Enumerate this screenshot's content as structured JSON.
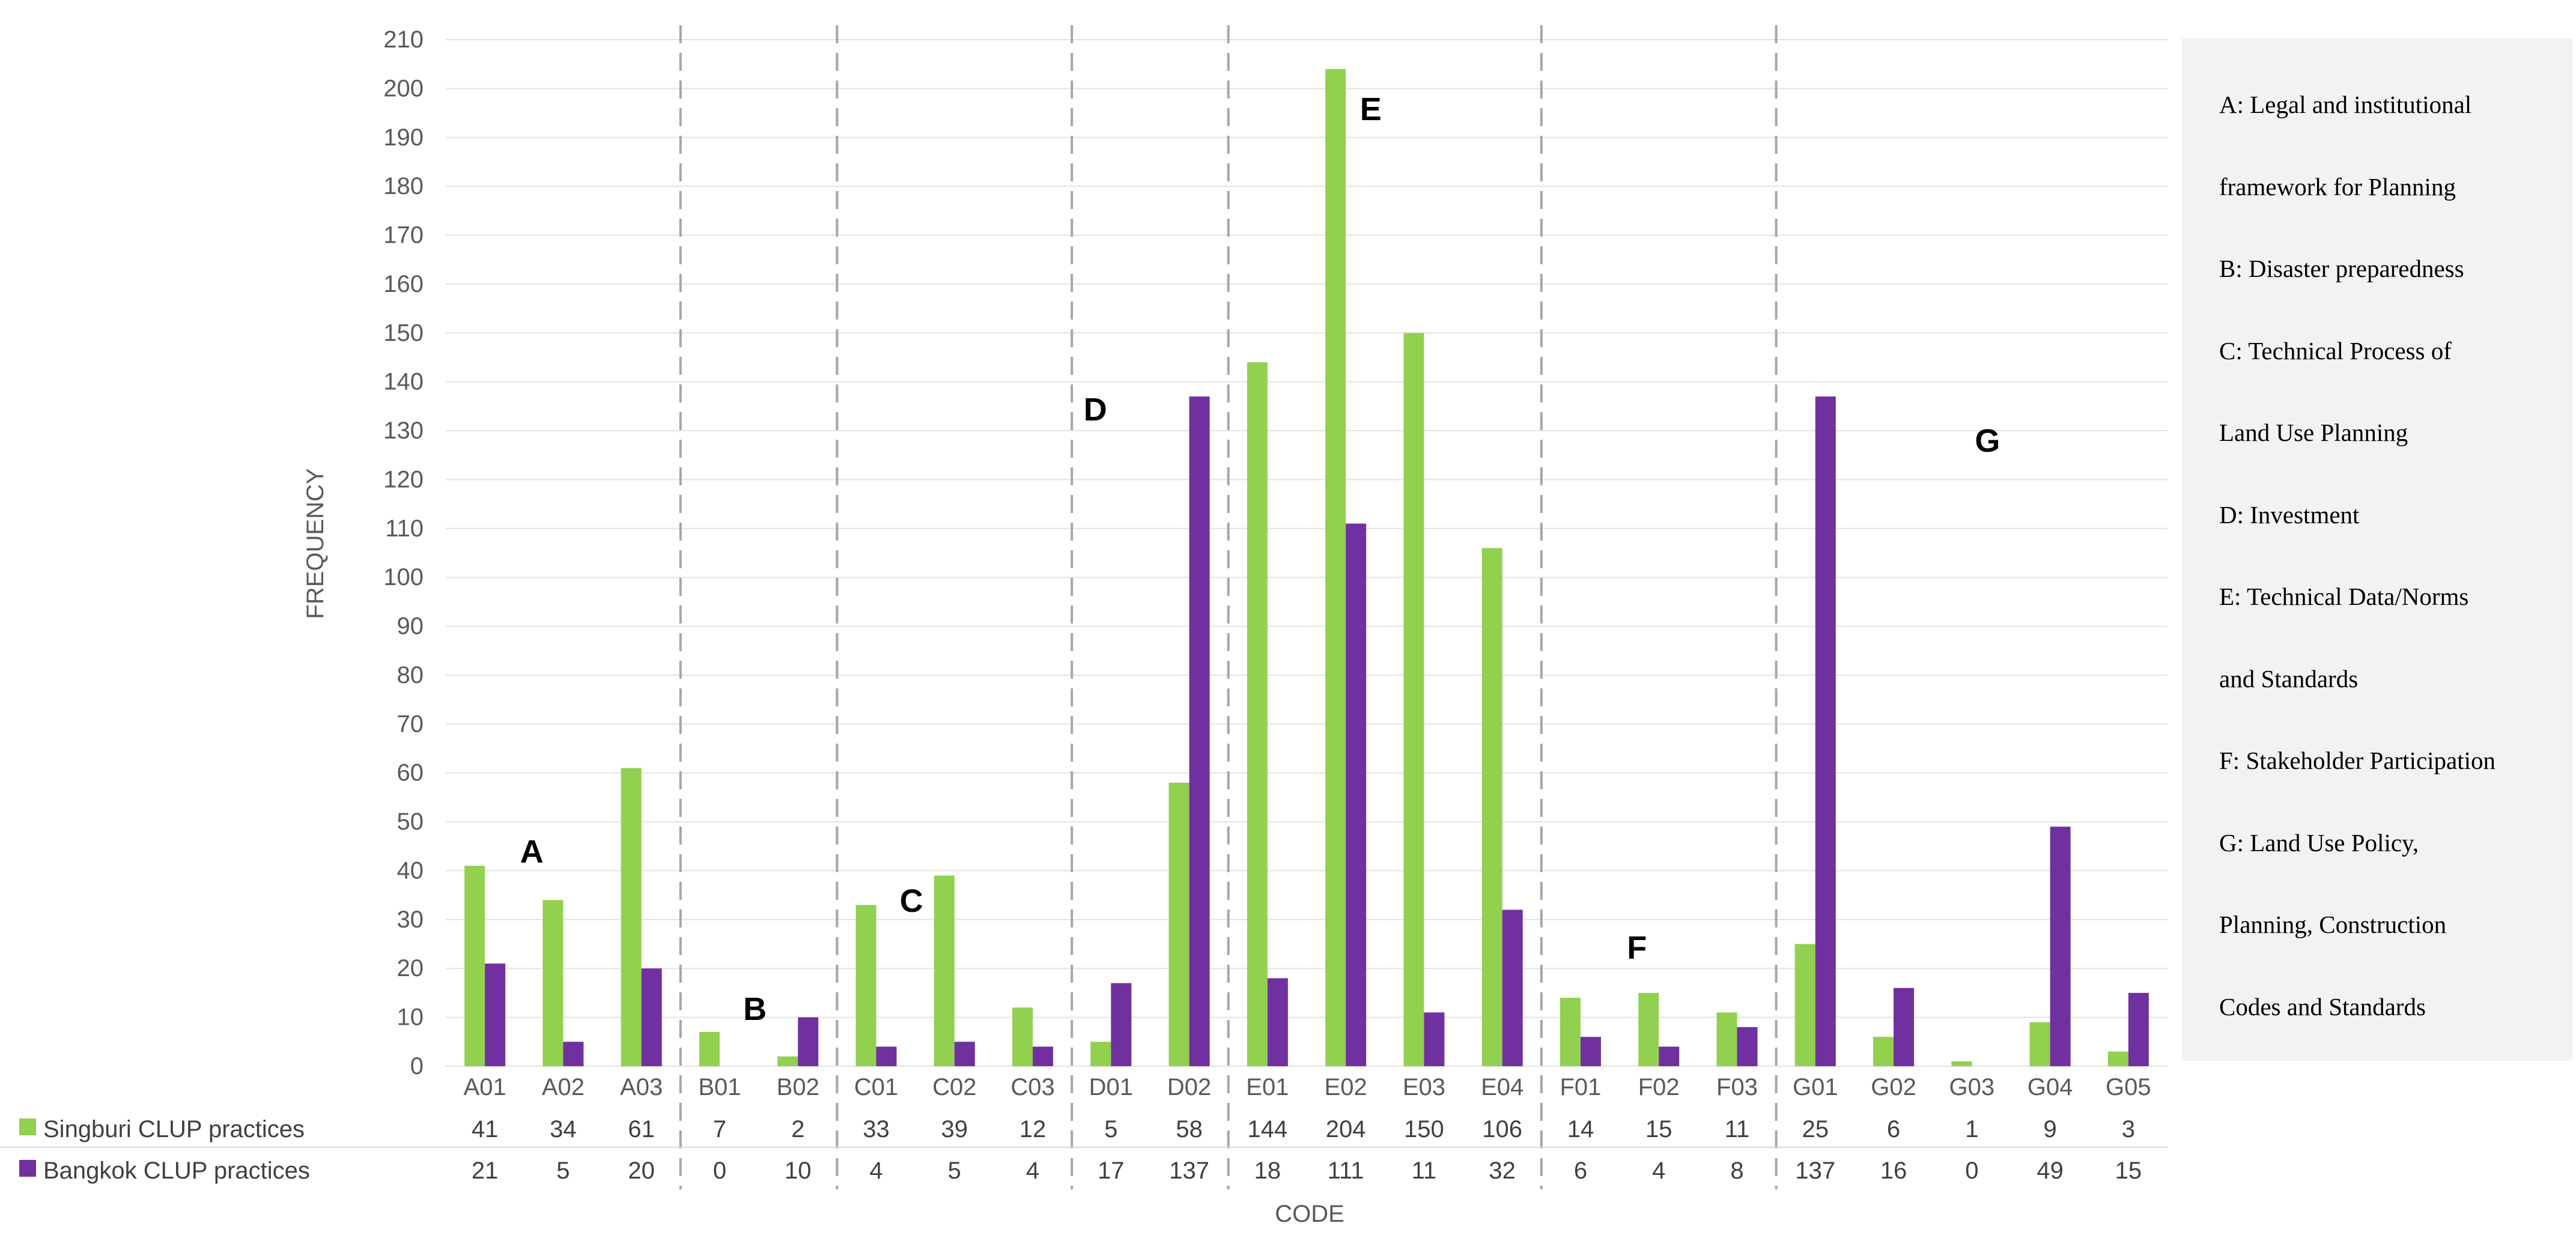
{
  "chart_data": {
    "type": "bar",
    "xlabel": "CODE",
    "ylabel": "FREQUENCY",
    "ylim": [
      0,
      210
    ],
    "yticks": [
      0,
      10,
      20,
      30,
      40,
      50,
      60,
      70,
      80,
      90,
      100,
      110,
      120,
      130,
      140,
      150,
      160,
      170,
      180,
      190,
      200,
      210
    ],
    "grid": true,
    "categories": [
      "A01",
      "A02",
      "A03",
      "B01",
      "B02",
      "C01",
      "C02",
      "C03",
      "D01",
      "D02",
      "E01",
      "E02",
      "E03",
      "E04",
      "F01",
      "F02",
      "F03",
      "G01",
      "G02",
      "G03",
      "G04",
      "G05"
    ],
    "series": [
      {
        "name": "Singburi CLUP practices",
        "color": "#92d050",
        "values": [
          41,
          34,
          61,
          7,
          2,
          33,
          39,
          12,
          5,
          58,
          144,
          204,
          150,
          106,
          14,
          15,
          11,
          25,
          6,
          1,
          9,
          3
        ]
      },
      {
        "name": "Bangkok CLUP practices",
        "color": "#7030a0",
        "values": [
          21,
          5,
          20,
          0,
          10,
          4,
          5,
          4,
          17,
          137,
          18,
          111,
          11,
          32,
          6,
          4,
          8,
          137,
          16,
          0,
          49,
          15
        ]
      }
    ],
    "groups": [
      {
        "label": "A",
        "count": 3
      },
      {
        "label": "B",
        "count": 2
      },
      {
        "label": "C",
        "count": 3
      },
      {
        "label": "D",
        "count": 2
      },
      {
        "label": "E",
        "count": 4
      },
      {
        "label": "F",
        "count": 3
      },
      {
        "label": "G",
        "count": 5
      }
    ],
    "data_table": true
  },
  "code_legend": [
    "A: Legal and institutional",
    "framework for Planning",
    "B: Disaster preparedness",
    "C: Technical Process of",
    "Land Use Planning",
    "D: Investment",
    "E: Technical Data/Norms",
    "and Standards",
    "F: Stakeholder Participation",
    "G: Land Use Policy,",
    "Planning, Construction",
    "Codes and Standards"
  ]
}
